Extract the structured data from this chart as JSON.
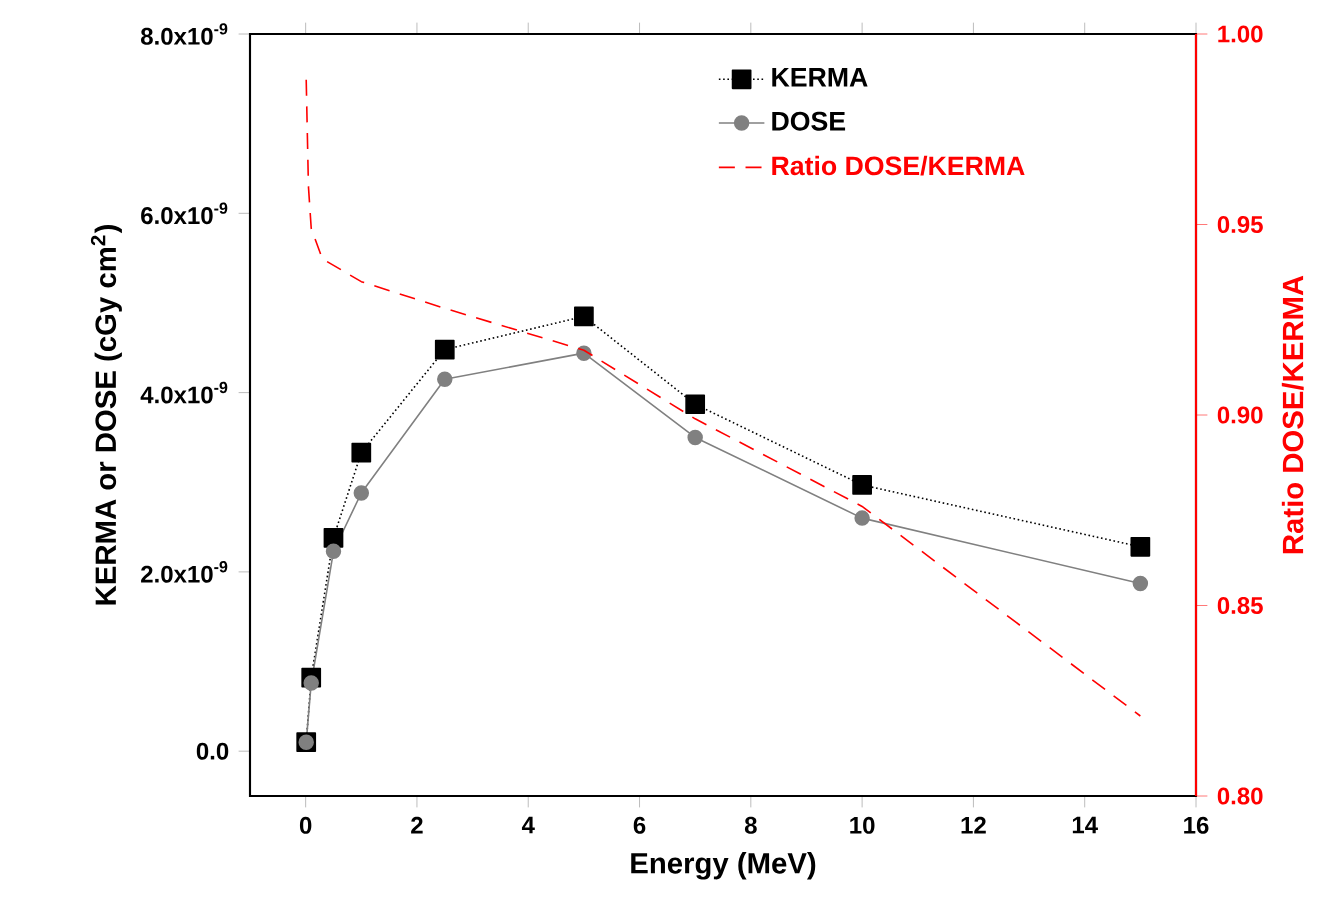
{
  "chart_data": {
    "type": "line",
    "xlabel": "Energy (MeV)",
    "ylabel": "KERMA or DOSE (cGy cm$^{2}$)",
    "y2label": "Ratio DOSE/KERMA",
    "x": [
      0.01,
      0.1,
      0.5,
      1,
      2.5,
      5,
      7,
      10,
      15
    ],
    "series": [
      {
        "name": "KERMA",
        "color": "#000000",
        "marker": "square",
        "line_style": "dotted",
        "values": [
          1e-10,
          8.2e-10,
          2.38e-09,
          3.33e-09,
          4.48e-09,
          4.85e-09,
          3.87e-09,
          2.97e-09,
          2.28e-09
        ]
      },
      {
        "name": "DOSE",
        "color": "#808080",
        "marker": "circle",
        "line_style": "solid",
        "values": [
          1e-10,
          7.6e-10,
          2.23e-09,
          2.88e-09,
          4.15e-09,
          4.44e-09,
          3.5e-09,
          2.6e-09,
          1.87e-09
        ]
      },
      {
        "name": "Ratio DOSE/KERMA",
        "color": "#ff0000",
        "marker": "none",
        "line_style": "dashed",
        "axis": "y2",
        "x": [
          0.01,
          0.05,
          0.1,
          0.3,
          1,
          2.5,
          5,
          7,
          10,
          15
        ],
        "values": [
          0.988,
          0.96,
          0.949,
          0.941,
          0.935,
          0.928,
          0.917,
          0.899,
          0.876,
          0.821
        ]
      }
    ],
    "xlim": [
      -1,
      16
    ],
    "xticks": [
      0,
      2,
      4,
      6,
      8,
      10,
      12,
      14,
      16
    ],
    "ylim": [
      -5e-10,
      8e-09
    ],
    "yticks": [
      {
        "value": 0,
        "label": "0.0"
      },
      {
        "value": 2e-09,
        "label": "2.0x10$^{-9}$"
      },
      {
        "value": 4e-09,
        "label": "4.0x10$^{-9}$"
      },
      {
        "value": 6e-09,
        "label": "6.0x10$^{-9}$"
      },
      {
        "value": 8e-09,
        "label": "8.0x10$^{-9}$"
      }
    ],
    "y2lim": [
      0.8,
      1.0
    ],
    "y2ticks": [
      {
        "value": 0.8,
        "label": "0.80"
      },
      {
        "value": 0.85,
        "label": "0.85"
      },
      {
        "value": 0.9,
        "label": "0.90"
      },
      {
        "value": 0.95,
        "label": "0.95"
      },
      {
        "value": 1.0,
        "label": "1.00"
      }
    ],
    "legend": "top"
  }
}
